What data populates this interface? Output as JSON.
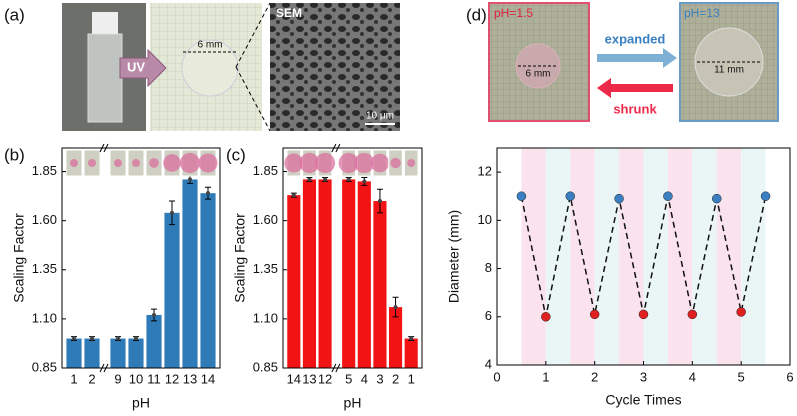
{
  "figure": {
    "panel_labels": [
      "(a)",
      "(b)",
      "(c)",
      "(d)"
    ],
    "a": {
      "arrow": "UV",
      "scale": "6 mm",
      "sem": "SEM",
      "sem_scale": "10 μm"
    },
    "d": {
      "left_ph": "pH=1.5",
      "left_size": "6 mm",
      "right_ph": "pH=13",
      "right_size": "11 mm",
      "expanded": "expanded",
      "shrunk": "shrunk"
    }
  },
  "chart_data": [
    {
      "type": "bar",
      "categories": [
        "1",
        "2",
        "9",
        "10",
        "11",
        "12",
        "13",
        "14"
      ],
      "values": [
        1.0,
        1.0,
        1.0,
        1.0,
        1.12,
        1.64,
        1.81,
        1.74
      ],
      "errors": [
        0.01,
        0.01,
        0.01,
        0.01,
        0.03,
        0.06,
        0.02,
        0.03
      ],
      "color": "#2f7bb8",
      "axis_break_after": 1,
      "ylim": [
        0.85,
        1.97
      ],
      "yticks": [
        0.85,
        {
          "value": 1.1,
          "label": "1.10"
        },
        1.35,
        {
          "value": 1.6,
          "label": "1.60"
        },
        1.85
      ],
      "ylabel": "Scaling Factor",
      "xlabel": "pH"
    },
    {
      "type": "bar",
      "categories": [
        "14",
        "13",
        "12",
        "5",
        "4",
        "3",
        "2",
        "1"
      ],
      "values": [
        1.73,
        1.81,
        1.81,
        1.81,
        1.8,
        1.7,
        1.16,
        1.0
      ],
      "errors": [
        0.01,
        0.01,
        0.01,
        0.01,
        0.02,
        0.06,
        0.05,
        0.01
      ],
      "color": "#f21414",
      "axis_break_after": 2,
      "ylim": [
        0.85,
        1.97
      ],
      "yticks": [
        0.85,
        {
          "value": 1.1,
          "label": "1.10"
        },
        1.35,
        {
          "value": 1.6,
          "label": "1.60"
        },
        1.85
      ],
      "ylabel": "Scaling Factor",
      "xlabel": "pH"
    },
    {
      "type": "line",
      "x": [
        0.5,
        1,
        1.5,
        2,
        2.5,
        3,
        3.5,
        4,
        4.5,
        5,
        5.5
      ],
      "series": [
        {
          "values": [
            11,
            6,
            11,
            6.1,
            10.9,
            6.1,
            11,
            6.1,
            10.9,
            6.2,
            11
          ],
          "point_colors": [
            "#3a7fc1",
            "#e02020",
            "#3a7fc1",
            "#e02020",
            "#3a7fc1",
            "#e02020",
            "#3a7fc1",
            "#e02020",
            "#3a7fc1",
            "#e02020",
            "#3a7fc1"
          ]
        }
      ],
      "xlim": [
        0,
        6
      ],
      "xticks": [
        0,
        1,
        2,
        3,
        4,
        5,
        6
      ],
      "ylim": [
        4,
        13
      ],
      "yticks": [
        4,
        6,
        8,
        10,
        12
      ],
      "xlabel": "Cycle Times",
      "ylabel": "Diameter (mm)"
    }
  ]
}
